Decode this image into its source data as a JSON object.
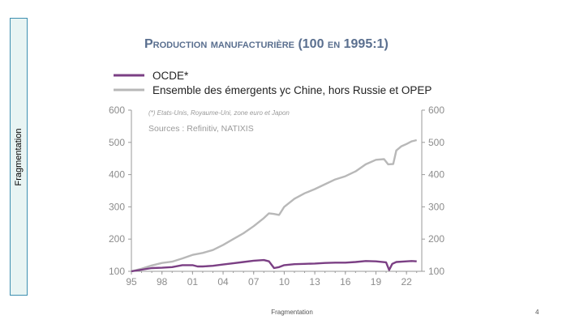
{
  "side_label": "Fragmentation",
  "footer": {
    "text": "Fragmentation",
    "page_number": "4"
  },
  "chart_data": {
    "type": "line",
    "title": "Production manufacturière (100 en 1995:1)",
    "xlabel": "",
    "ylabel": "",
    "note": "(*) Etats-Unis, Royaume-Uni, zone euro et Japon",
    "source": "Sources : Refinitiv, NATIXIS",
    "ylim": [
      100,
      600
    ],
    "xlim": [
      1995,
      2023.5
    ],
    "y_ticks": [
      "100",
      "200",
      "300",
      "400",
      "500",
      "600"
    ],
    "x_ticks": [
      {
        "year": 1995,
        "label": "95"
      },
      {
        "year": 1998,
        "label": "98"
      },
      {
        "year": 2001,
        "label": "01"
      },
      {
        "year": 2004,
        "label": "04"
      },
      {
        "year": 2007,
        "label": "07"
      },
      {
        "year": 2010,
        "label": "10"
      },
      {
        "year": 2013,
        "label": "13"
      },
      {
        "year": 2016,
        "label": "16"
      },
      {
        "year": 2019,
        "label": "19"
      },
      {
        "year": 2022,
        "label": "22"
      }
    ],
    "legend_position": "top",
    "grid": false,
    "series": [
      {
        "name": "OCDE*",
        "color": "#7b3f84",
        "points": [
          [
            1995,
            100
          ],
          [
            1996,
            105
          ],
          [
            1997,
            110
          ],
          [
            1998,
            111
          ],
          [
            1999,
            113
          ],
          [
            2000,
            119
          ],
          [
            2001,
            119
          ],
          [
            2001.5,
            115
          ],
          [
            2002,
            115
          ],
          [
            2003,
            117
          ],
          [
            2004,
            121
          ],
          [
            2005,
            125
          ],
          [
            2006,
            129
          ],
          [
            2007,
            133
          ],
          [
            2008,
            135
          ],
          [
            2008.5,
            131
          ],
          [
            2009,
            110
          ],
          [
            2009.5,
            113
          ],
          [
            2010,
            119
          ],
          [
            2011,
            122
          ],
          [
            2012,
            123
          ],
          [
            2013,
            124
          ],
          [
            2014,
            126
          ],
          [
            2015,
            127
          ],
          [
            2016,
            127
          ],
          [
            2017,
            129
          ],
          [
            2018,
            132
          ],
          [
            2019,
            131
          ],
          [
            2020,
            128
          ],
          [
            2020.3,
            104
          ],
          [
            2020.6,
            123
          ],
          [
            2021,
            129
          ],
          [
            2022,
            131
          ],
          [
            2022.5,
            132
          ],
          [
            2023,
            131
          ]
        ]
      },
      {
        "name": "Ensemble des émergents yc Chine, hors Russie et OPEP",
        "color": "#b8b8b8",
        "points": [
          [
            1995,
            100
          ],
          [
            1996,
            108
          ],
          [
            1997,
            118
          ],
          [
            1998,
            126
          ],
          [
            1999,
            130
          ],
          [
            2000,
            140
          ],
          [
            2001,
            151
          ],
          [
            2002,
            157
          ],
          [
            2003,
            166
          ],
          [
            2004,
            182
          ],
          [
            2005,
            200
          ],
          [
            2006,
            218
          ],
          [
            2007,
            240
          ],
          [
            2008,
            265
          ],
          [
            2008.5,
            280
          ],
          [
            2009,
            278
          ],
          [
            2009.5,
            275
          ],
          [
            2010,
            300
          ],
          [
            2011,
            325
          ],
          [
            2012,
            342
          ],
          [
            2013,
            355
          ],
          [
            2014,
            370
          ],
          [
            2015,
            385
          ],
          [
            2016,
            395
          ],
          [
            2017,
            410
          ],
          [
            2018,
            432
          ],
          [
            2019,
            446
          ],
          [
            2019.8,
            448
          ],
          [
            2020.2,
            432
          ],
          [
            2020.7,
            433
          ],
          [
            2021,
            475
          ],
          [
            2021.5,
            488
          ],
          [
            2022,
            495
          ],
          [
            2022.5,
            503
          ],
          [
            2023,
            507
          ]
        ]
      }
    ]
  }
}
